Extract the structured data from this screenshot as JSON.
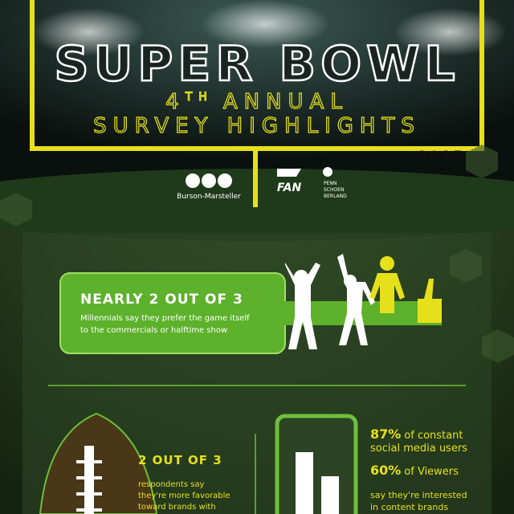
{
  "header": {
    "title": "SUPER BOWL",
    "subtitle_number": "4",
    "subtitle_suffix": "TH",
    "subtitle_word": "ANNUAL",
    "subtitle_line2": "SURVEY HIGHLIGHTS",
    "year": "2017"
  },
  "sponsors": {
    "first": "Burson-Marsteller",
    "second": "FAN",
    "third": [
      "PENN",
      "SCHOEN",
      "BERLAND"
    ]
  },
  "stat_millennials": {
    "headline": "NEARLY 2 OUT OF 3",
    "lines": [
      "Millennials say they prefer the game itself",
      "to the commercials or halftime show"
    ]
  },
  "stat_brands": {
    "headline": "2 OUT OF 3",
    "lines": [
      "respondents say",
      "they're more favorable",
      "toward brands with"
    ]
  },
  "stat_social": [
    {
      "figure": "87%",
      "lines": [
        "of constant",
        "social media users"
      ]
    },
    {
      "figure": "60%",
      "lines": [
        "of Viewers"
      ]
    }
  ],
  "stat_social_note": [
    "say they're interested",
    "in content brands"
  ]
}
